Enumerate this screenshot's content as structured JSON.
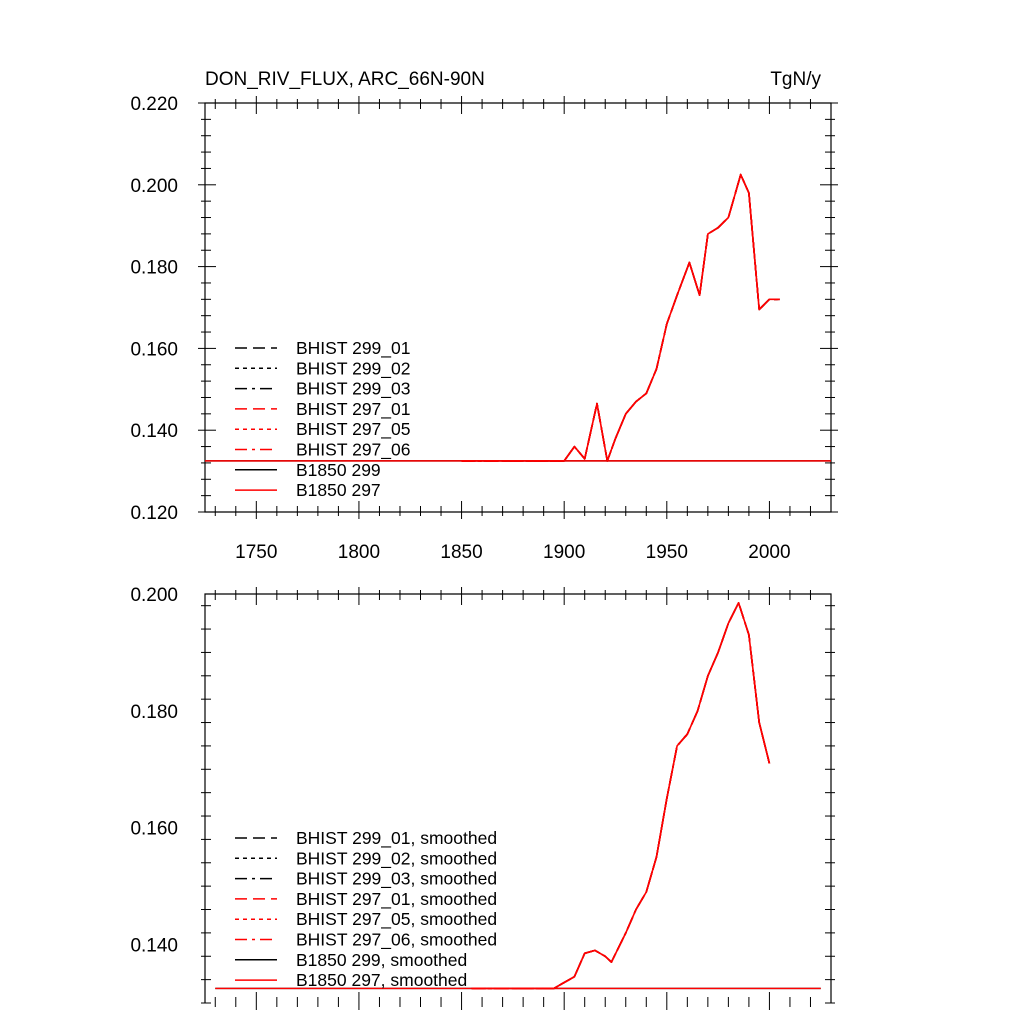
{
  "chart_data": [
    {
      "type": "line",
      "title": "DON_RIV_FLUX, ARC_66N-90N",
      "units": "TgN/y",
      "xlim": [
        1725,
        2030
      ],
      "ylim": [
        0.12,
        0.22
      ],
      "xticks": [
        1750,
        1800,
        1850,
        1900,
        1950,
        2000
      ],
      "xtick_labels": [
        "1750",
        "1800",
        "1850",
        "1900",
        "1950",
        "2000"
      ],
      "yticks": [
        0.12,
        0.14,
        0.16,
        0.18,
        0.2,
        0.22
      ],
      "ytick_labels": [
        "0.120",
        "0.140",
        "0.160",
        "0.180",
        "0.200",
        "0.220"
      ],
      "legend_position": "bottom-left",
      "series": [
        {
          "name": "BHIST 299_01",
          "color": "#000000",
          "dash": "long-dash"
        },
        {
          "name": "BHIST 299_02",
          "color": "#000000",
          "dash": "dotted"
        },
        {
          "name": "BHIST 299_03",
          "color": "#000000",
          "dash": "dash-dot"
        },
        {
          "name": "BHIST 297_01",
          "color": "#ff0000",
          "dash": "long-dash"
        },
        {
          "name": "BHIST 297_05",
          "color": "#ff0000",
          "dash": "dotted"
        },
        {
          "name": "BHIST 297_06",
          "color": "#ff0000",
          "dash": "dash-dot"
        },
        {
          "name": "B1850 299",
          "color": "#000000",
          "dash": "solid"
        },
        {
          "name": "B1850 297",
          "color": "#ff0000",
          "dash": "solid"
        }
      ],
      "historical_curve": {
        "x": [
          1850,
          1860,
          1870,
          1880,
          1890,
          1900,
          1905,
          1910,
          1916,
          1921,
          1925,
          1930,
          1935,
          1940,
          1945,
          1950,
          1955,
          1961,
          1966,
          1970,
          1975,
          1980,
          1986,
          1990,
          1995,
          2000,
          2005
        ],
        "y": [
          0.1325,
          0.1325,
          0.1325,
          0.1325,
          0.1325,
          0.1325,
          0.136,
          0.133,
          0.1465,
          0.1325,
          0.138,
          0.144,
          0.147,
          0.149,
          0.155,
          0.166,
          0.173,
          0.181,
          0.173,
          0.188,
          0.1895,
          0.192,
          0.2025,
          0.198,
          0.1695,
          0.172,
          0.172
        ]
      },
      "control_curve": {
        "x": [
          1725,
          2030
        ],
        "y": [
          0.1325,
          0.1325
        ]
      }
    },
    {
      "type": "line",
      "xlim": [
        1725,
        2030
      ],
      "ylim": [
        0.13,
        0.2
      ],
      "xticks": [
        1750,
        1800,
        1850,
        1900,
        1950,
        2000
      ],
      "yticks": [
        0.14,
        0.16,
        0.18,
        0.2
      ],
      "ytick_labels": [
        "0.140",
        "0.160",
        "0.180",
        "0.200"
      ],
      "legend_position": "bottom-left",
      "series": [
        {
          "name": "BHIST 299_01, smoothed",
          "color": "#000000",
          "dash": "long-dash"
        },
        {
          "name": "BHIST 299_02, smoothed",
          "color": "#000000",
          "dash": "dotted"
        },
        {
          "name": "BHIST 299_03, smoothed",
          "color": "#000000",
          "dash": "dash-dot"
        },
        {
          "name": "BHIST 297_01, smoothed",
          "color": "#ff0000",
          "dash": "long-dash"
        },
        {
          "name": "BHIST 297_05, smoothed",
          "color": "#ff0000",
          "dash": "dotted"
        },
        {
          "name": "BHIST 297_06, smoothed",
          "color": "#ff0000",
          "dash": "dash-dot"
        },
        {
          "name": "B1850 299, smoothed",
          "color": "#000000",
          "dash": "solid"
        },
        {
          "name": "B1850 297, smoothed",
          "color": "#ff0000",
          "dash": "solid"
        }
      ],
      "historical_curve": {
        "x": [
          1855,
          1870,
          1885,
          1895,
          1900,
          1905,
          1910,
          1915,
          1920,
          1923,
          1930,
          1935,
          1940,
          1945,
          1950,
          1955,
          1960,
          1965,
          1970,
          1975,
          1980,
          1985,
          1990,
          1995,
          2000
        ],
        "y": [
          0.1325,
          0.1325,
          0.1325,
          0.1325,
          0.1335,
          0.1345,
          0.1385,
          0.139,
          0.138,
          0.137,
          0.142,
          0.146,
          0.149,
          0.155,
          0.165,
          0.174,
          0.176,
          0.18,
          0.186,
          0.19,
          0.195,
          0.1985,
          0.193,
          0.178,
          0.171
        ]
      },
      "control_curve": {
        "x": [
          1730,
          2025
        ],
        "y": [
          0.1325,
          0.1325
        ]
      }
    }
  ]
}
